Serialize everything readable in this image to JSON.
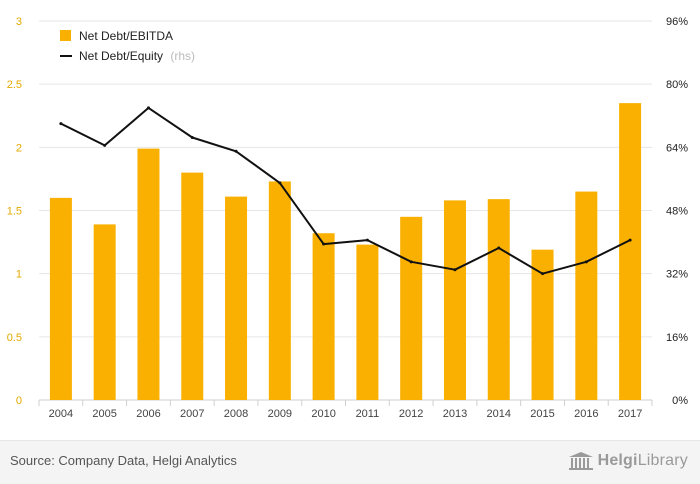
{
  "chart_data": {
    "type": "bar",
    "categories": [
      "2004",
      "2005",
      "2006",
      "2007",
      "2008",
      "2009",
      "2010",
      "2011",
      "2012",
      "2013",
      "2014",
      "2015",
      "2016",
      "2017"
    ],
    "series": [
      {
        "name": "Net Debt/EBITDA",
        "type": "bar",
        "axis": "left",
        "color": "#f9b000",
        "values": [
          1.6,
          1.39,
          1.99,
          1.8,
          1.61,
          1.73,
          1.32,
          1.23,
          1.45,
          1.58,
          1.59,
          1.19,
          1.65,
          2.35
        ]
      },
      {
        "name": "Net Debt/Equity",
        "note": "(rhs)",
        "type": "line",
        "axis": "right",
        "color": "#111111",
        "values": [
          70,
          64.5,
          74,
          66.5,
          63,
          55,
          39.5,
          40.5,
          35,
          33,
          38.5,
          32,
          35,
          40.5
        ]
      }
    ],
    "yLeft": {
      "min": 0,
      "max": 3,
      "ticks": [
        "0",
        "0.5",
        "1",
        "1.5",
        "2",
        "2.5",
        "3"
      ],
      "tickValues": [
        0,
        0.5,
        1,
        1.5,
        2,
        2.5,
        3
      ]
    },
    "yRight": {
      "min": 0,
      "max": 96,
      "ticks": [
        "0%",
        "16%",
        "32%",
        "48%",
        "64%",
        "80%",
        "96%"
      ],
      "tickValues": [
        0,
        16,
        32,
        48,
        64,
        80,
        96
      ],
      "unit": "%"
    },
    "grid": true,
    "legend": "top-left"
  },
  "footer": {
    "source": "Source: Company Data, Helgi Analytics",
    "logo_a": "Helgi",
    "logo_b": "Library"
  }
}
